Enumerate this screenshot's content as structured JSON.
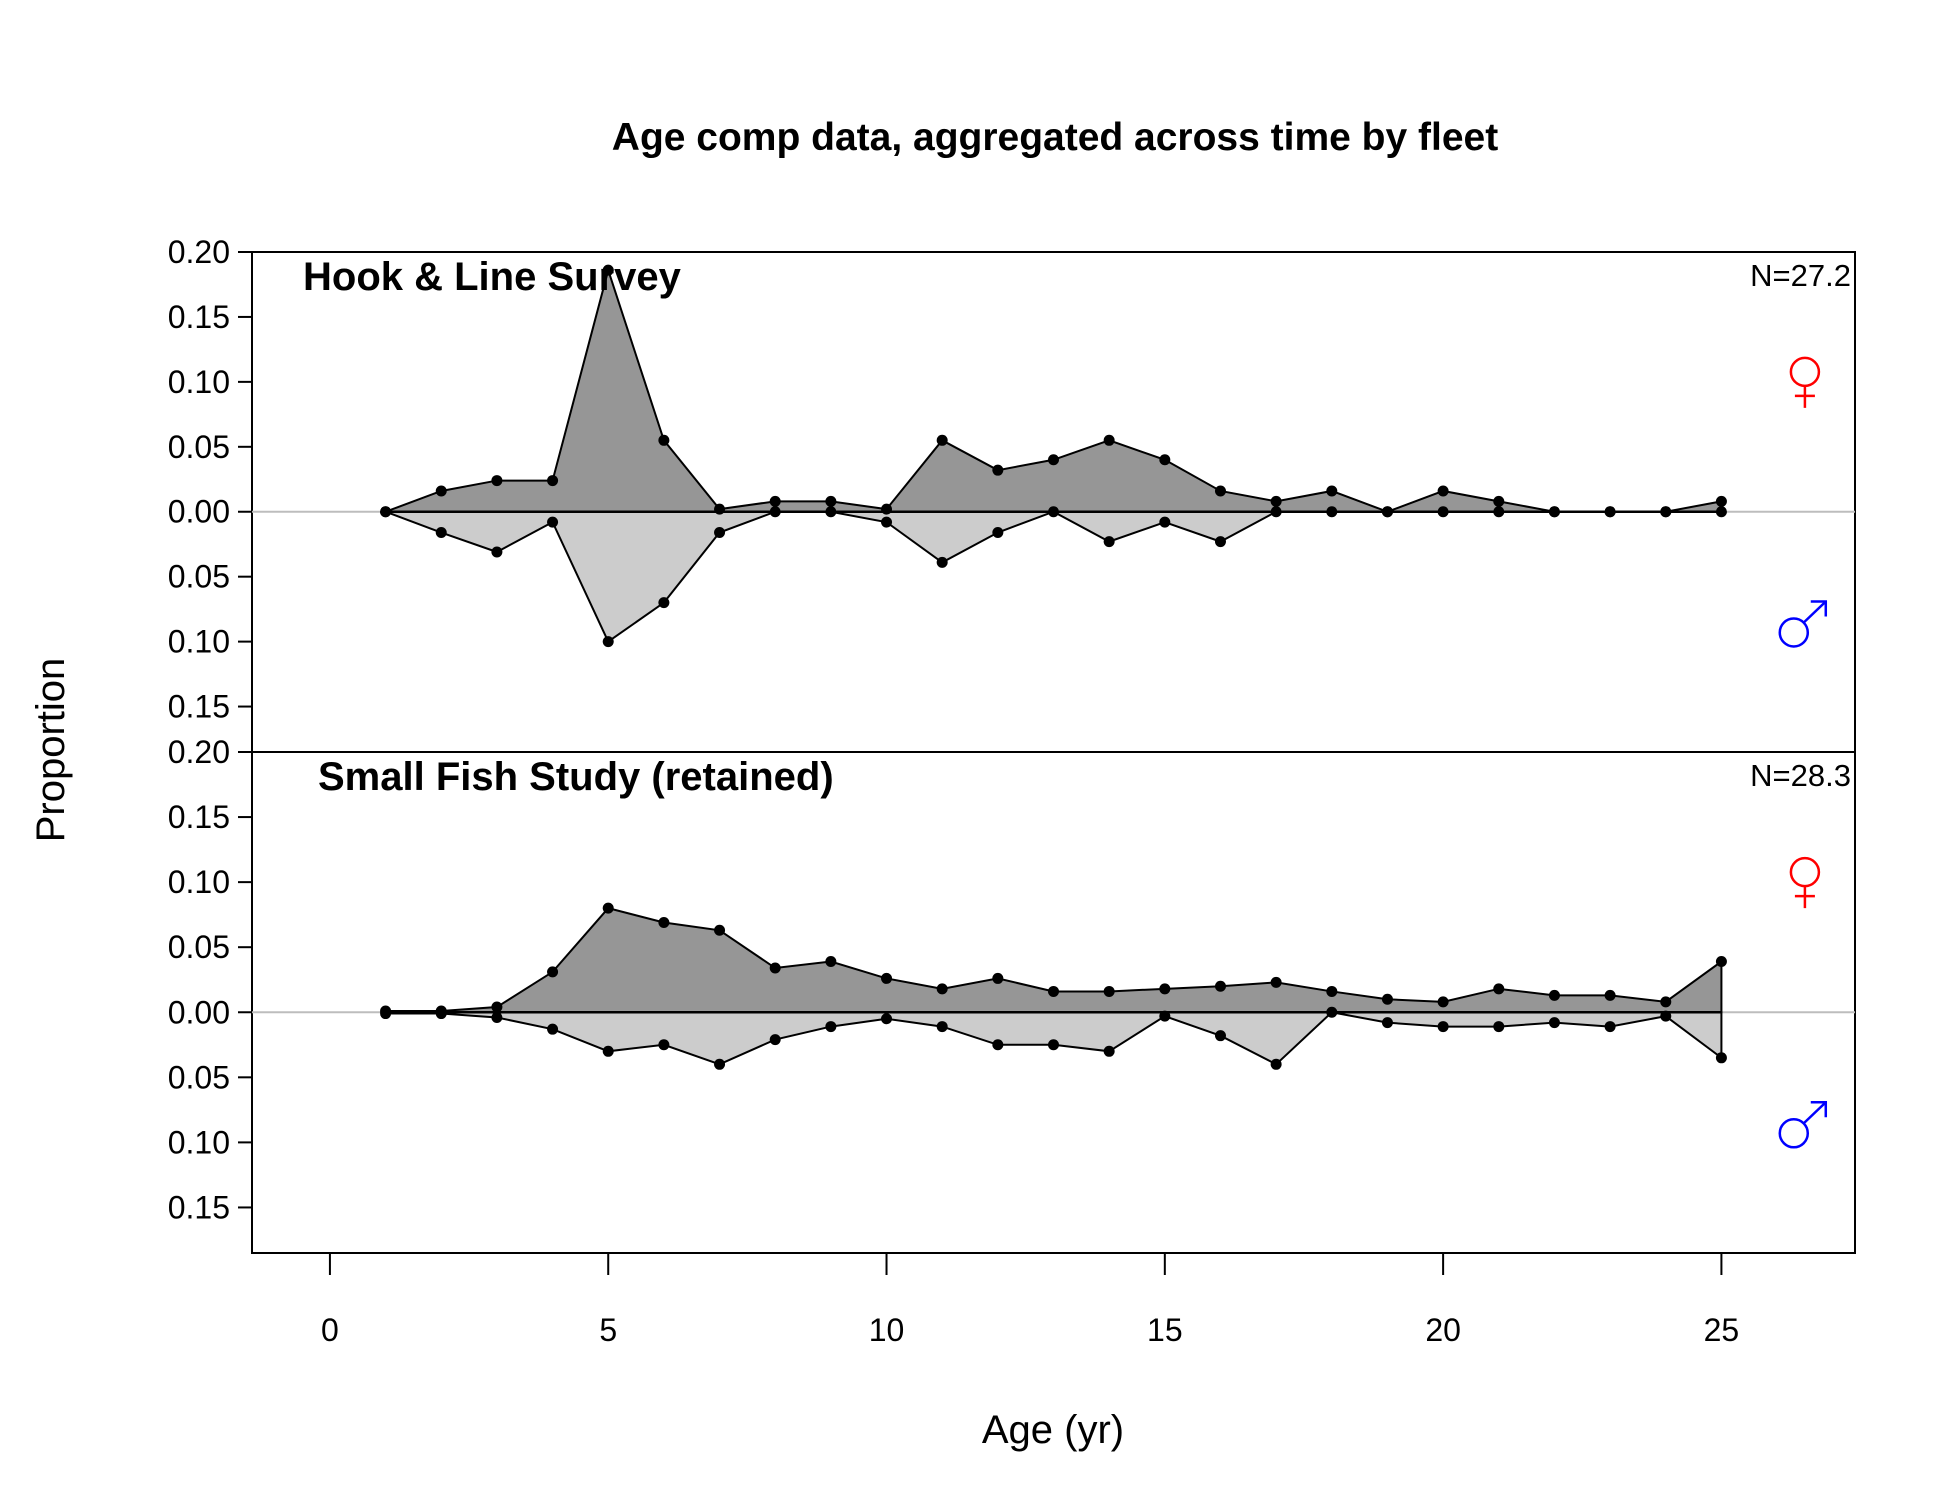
{
  "chart_data": {
    "type": "area",
    "title": "Age comp data, aggregated across time by fleet",
    "xlabel": "Age (yr)",
    "ylabel": "Proportion",
    "xlim": [
      -1.4,
      27.4
    ],
    "x_ticks": [
      0,
      5,
      10,
      15,
      20,
      25
    ],
    "y_ticks": [
      0.2,
      0.15,
      0.1,
      0.05,
      0,
      -0.05,
      -0.1,
      -0.15
    ],
    "y_tick_labels": [
      "0.20",
      "0.15",
      "0.10",
      "0.05",
      "0.00",
      "0.05",
      "0.10",
      "0.15"
    ],
    "female_color": "#ff0000",
    "male_color": "#0000ff",
    "female_fill": "#969696",
    "male_fill": "#cccccc",
    "female_symbol": "♀",
    "male_symbol": "♂",
    "panels": [
      {
        "name": "Hook & Line Survey",
        "n_label": "N=27.2",
        "ylim": [
          -0.185,
          0.2
        ],
        "ages": [
          1,
          2,
          3,
          4,
          5,
          6,
          7,
          8,
          9,
          10,
          11,
          12,
          13,
          14,
          15,
          16,
          17,
          18,
          19,
          20,
          21,
          22,
          23,
          24,
          25
        ],
        "female": [
          0.0,
          0.016,
          0.024,
          0.024,
          0.186,
          0.055,
          0.002,
          0.008,
          0.008,
          0.002,
          0.055,
          0.032,
          0.04,
          0.055,
          0.04,
          0.016,
          0.008,
          0.016,
          0.0,
          0.016,
          0.008,
          0.0,
          0.0,
          0.0,
          0.008
        ],
        "male": [
          0.0,
          -0.016,
          -0.031,
          -0.008,
          -0.1,
          -0.07,
          -0.016,
          0.0,
          0.0,
          -0.008,
          -0.039,
          -0.016,
          0.0,
          -0.023,
          -0.008,
          -0.023,
          0.0,
          0.0,
          0.0,
          0.0,
          0.0,
          0.0,
          0.0,
          0.0,
          0.0
        ]
      },
      {
        "name": "Small Fish Study (retained)",
        "n_label": "N=28.3",
        "ylim": [
          -0.185,
          0.2
        ],
        "ages": [
          1,
          2,
          3,
          4,
          5,
          6,
          7,
          8,
          9,
          10,
          11,
          12,
          13,
          14,
          15,
          16,
          17,
          18,
          19,
          20,
          21,
          22,
          23,
          24,
          25
        ],
        "female": [
          0.001,
          0.001,
          0.004,
          0.031,
          0.08,
          0.069,
          0.063,
          0.034,
          0.039,
          0.026,
          0.018,
          0.026,
          0.016,
          0.016,
          0.018,
          0.02,
          0.023,
          0.016,
          0.01,
          0.008,
          0.018,
          0.013,
          0.013,
          0.008,
          0.039
        ],
        "male": [
          -0.001,
          -0.001,
          -0.004,
          -0.013,
          -0.03,
          -0.025,
          -0.04,
          -0.021,
          -0.011,
          -0.005,
          -0.011,
          -0.025,
          -0.025,
          -0.03,
          -0.003,
          -0.018,
          -0.04,
          0.0,
          -0.008,
          -0.011,
          -0.011,
          -0.008,
          -0.011,
          -0.003,
          -0.035
        ]
      }
    ]
  }
}
